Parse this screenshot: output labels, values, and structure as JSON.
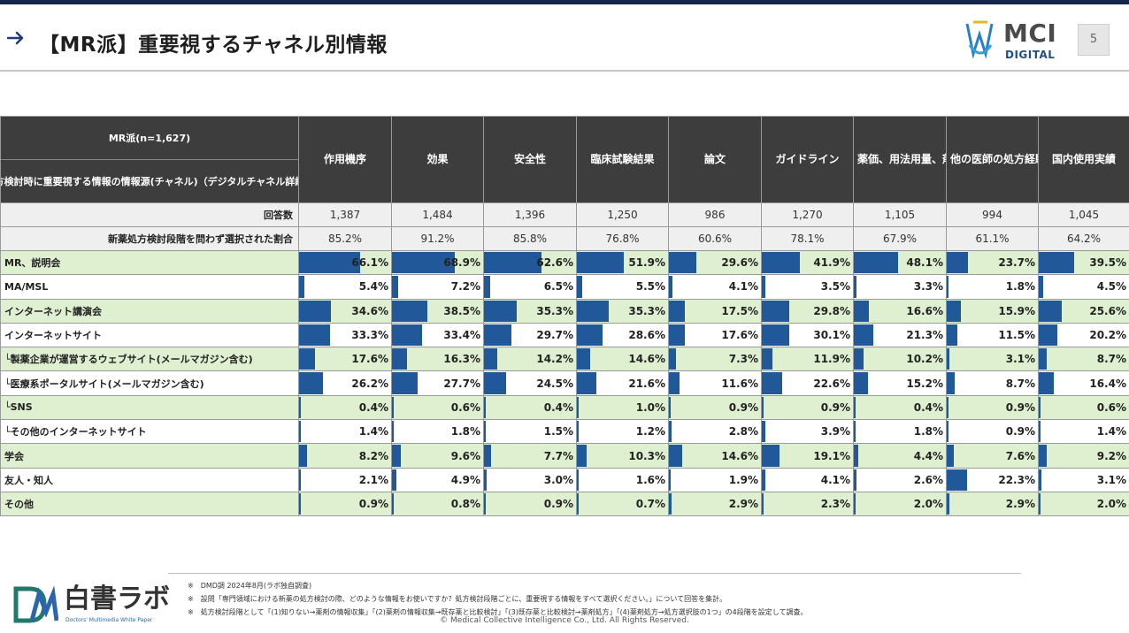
{
  "header": {
    "title": "【MR派】重要視するチャネル別情報",
    "logo_main": "MCI",
    "logo_sub": "DIGITAL",
    "page_number": "5"
  },
  "table": {
    "corner_top": "MR派(n=1,627)",
    "corner_bottom": "新薬処方検討時に重要視する情報の情報源(チャネル)（デジタルチャネル詳細含む）",
    "columns": [
      "作用機序",
      "効果",
      "安全性",
      "臨床試験結果",
      "論文",
      "ガイドライン",
      "薬価、用法用量、剤形",
      "他の医師の処方経験",
      "国内使用実績"
    ],
    "meta_rows": [
      {
        "label": "回答数",
        "values": [
          "1,387",
          "1,484",
          "1,396",
          "1,250",
          "986",
          "1,270",
          "1,105",
          "994",
          "1,045"
        ]
      },
      {
        "label": "新薬処方検討段階を問わず選択された割合",
        "values": [
          "85.2%",
          "91.2%",
          "85.8%",
          "76.8%",
          "60.6%",
          "78.1%",
          "67.9%",
          "61.1%",
          "64.2%"
        ]
      }
    ],
    "rows": [
      {
        "label": "MR、説明会",
        "values": [
          66.1,
          68.9,
          62.6,
          51.9,
          29.6,
          41.9,
          48.1,
          23.7,
          39.5
        ]
      },
      {
        "label": "MA/MSL",
        "values": [
          5.4,
          7.2,
          6.5,
          5.5,
          4.1,
          3.5,
          3.3,
          1.8,
          4.5
        ]
      },
      {
        "label": "インターネット講演会",
        "values": [
          34.6,
          38.5,
          35.3,
          35.3,
          17.5,
          29.8,
          16.6,
          15.9,
          25.6
        ]
      },
      {
        "label": "インターネットサイト",
        "values": [
          33.3,
          33.4,
          29.7,
          28.6,
          17.6,
          30.1,
          21.3,
          11.5,
          20.2
        ]
      },
      {
        "label": "└製薬企業が運営するウェブサイト(メールマガジン含む)",
        "values": [
          17.6,
          16.3,
          14.2,
          14.6,
          7.3,
          11.9,
          10.2,
          3.1,
          8.7
        ]
      },
      {
        "label": "└医療系ポータルサイト(メールマガジン含む)",
        "values": [
          26.2,
          27.7,
          24.5,
          21.6,
          11.6,
          22.6,
          15.2,
          8.7,
          16.4
        ]
      },
      {
        "label": "└SNS",
        "values": [
          0.4,
          0.6,
          0.4,
          1.0,
          0.9,
          0.9,
          0.4,
          0.9,
          0.6
        ]
      },
      {
        "label": "└その他のインターネットサイト",
        "values": [
          1.4,
          1.8,
          1.5,
          1.2,
          2.8,
          3.9,
          1.8,
          0.9,
          1.4
        ]
      },
      {
        "label": "学会",
        "values": [
          8.2,
          9.6,
          7.7,
          10.3,
          14.6,
          19.1,
          4.4,
          7.6,
          9.2
        ]
      },
      {
        "label": "友人・知人",
        "values": [
          2.1,
          4.9,
          3.0,
          1.6,
          1.9,
          4.1,
          2.6,
          22.3,
          3.1
        ]
      },
      {
        "label": "その他",
        "values": [
          0.9,
          0.8,
          0.9,
          0.7,
          2.9,
          2.3,
          2.0,
          2.9,
          2.0
        ]
      }
    ]
  },
  "footer": {
    "logo_text": "白書ラボ",
    "logo_sub": "Doctors' Multimedia White Paper",
    "notes": [
      "※　DMD調 2024年8月(ラボ独自調査)",
      "※　設問「専門領域における新薬の処方検討の際、どのような情報をお使いですか？処方検討段階ごとに、重要視する情報をすべて選択ください。」について回答を集計。",
      "※　処方検討段階として「(1)知りない→薬剤の情報収集」「(2)薬剤の情報収集→既存薬と比較検討」「(3)既存薬と比較検討→薬剤処方」「(4)薬剤処方→処方選択肢の1つ」の4段階を設定して調査。"
    ],
    "copyright": "© Medical Collective Intelligence Co., Ltd. All Rights Reserved."
  },
  "colors": {
    "bar": "#20589a",
    "header_bg": "#3d3d3d",
    "green_row": "#dff0d0",
    "top_rule": "#14244a"
  }
}
